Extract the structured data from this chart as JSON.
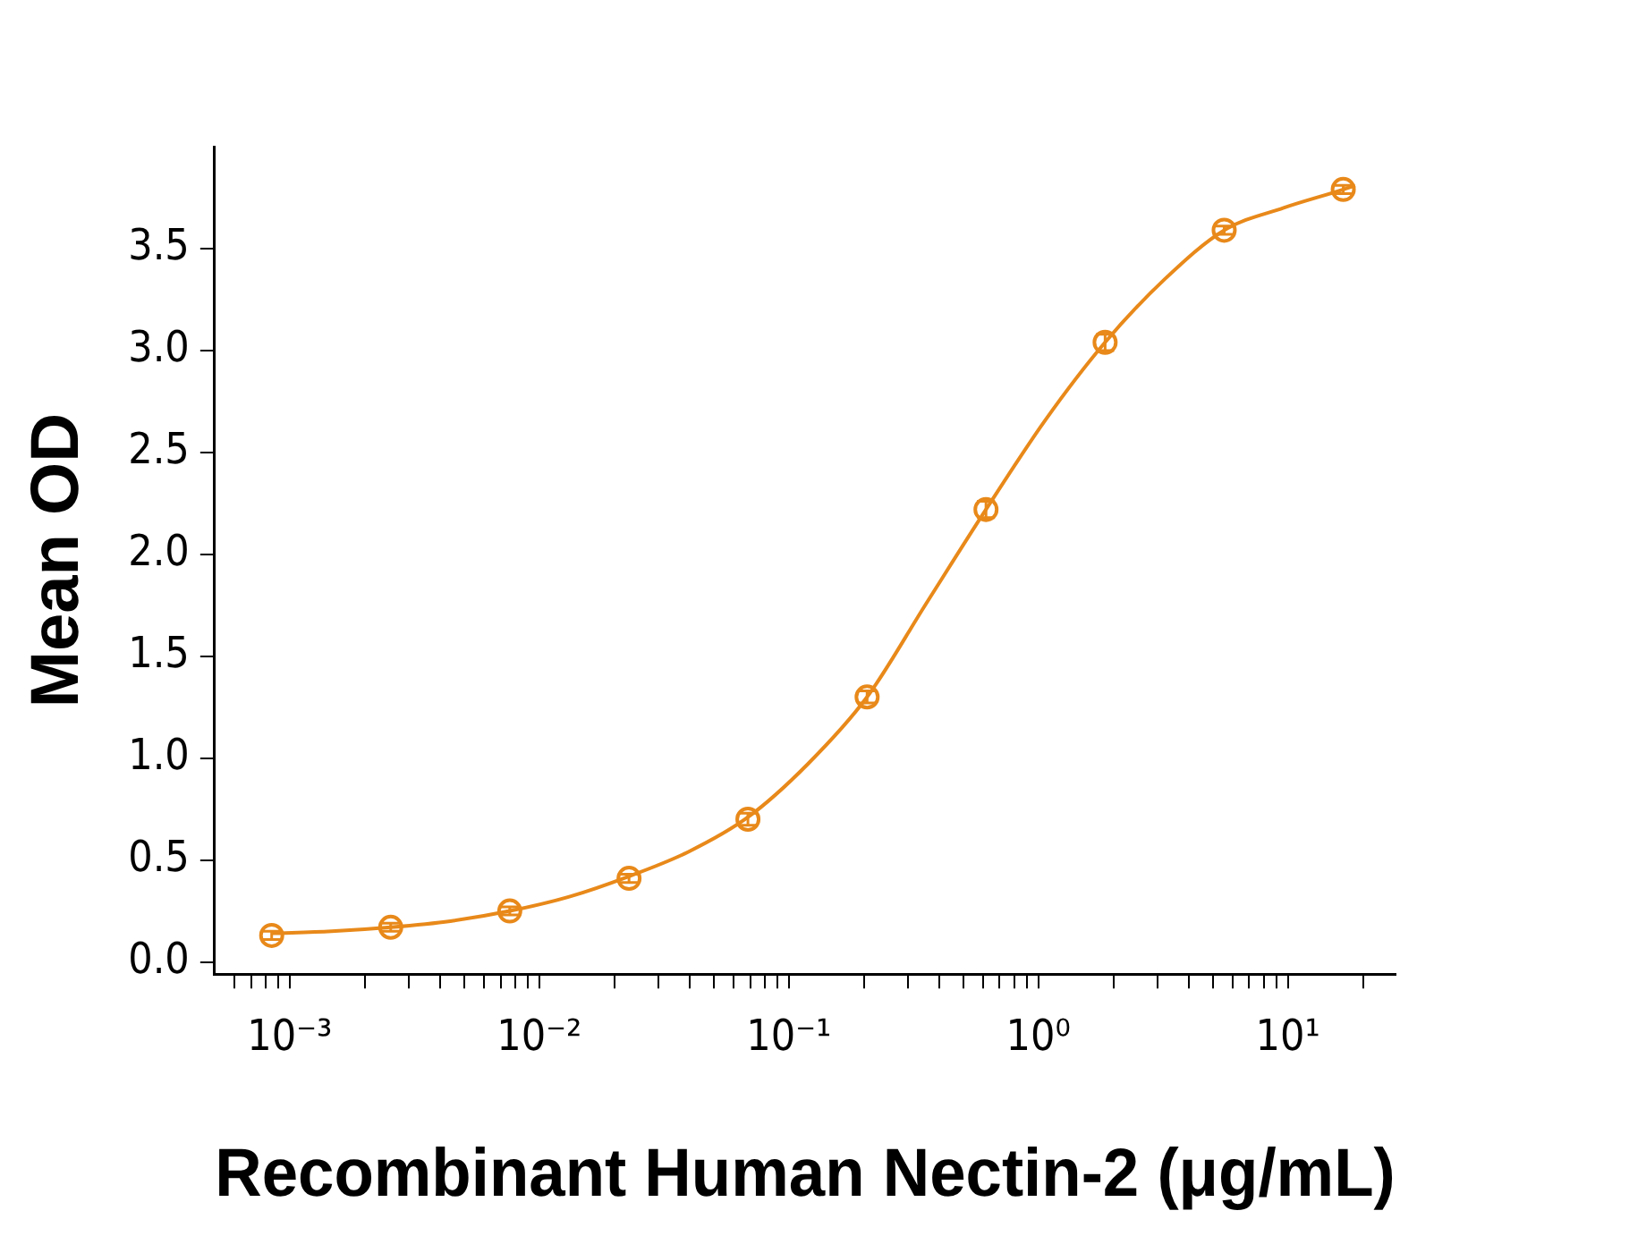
{
  "chart_data": {
    "type": "scatter",
    "xlabel": "Recombinant Human Nectin-2 (μg/mL)",
    "ylabel": "Mean OD",
    "log": "x",
    "grid": false,
    "legend": false,
    "marker": "circle",
    "xlim": [
      0.0005,
      27
    ],
    "ylim": [
      -0.06,
      4.0
    ],
    "xticks": [
      {
        "value": 0.0006,
        "label": null
      },
      {
        "value": 0.0007,
        "label": null
      },
      {
        "value": 0.0008,
        "label": null
      },
      {
        "value": 0.0009,
        "label": null
      },
      {
        "value": 0.001,
        "label": "10⁻³"
      },
      {
        "value": 0.002,
        "label": null
      },
      {
        "value": 0.003,
        "label": null
      },
      {
        "value": 0.004,
        "label": null
      },
      {
        "value": 0.005,
        "label": null
      },
      {
        "value": 0.006,
        "label": null
      },
      {
        "value": 0.007,
        "label": null
      },
      {
        "value": 0.008,
        "label": null
      },
      {
        "value": 0.009,
        "label": null
      },
      {
        "value": 0.01,
        "label": "10⁻²"
      },
      {
        "value": 0.02,
        "label": null
      },
      {
        "value": 0.03,
        "label": null
      },
      {
        "value": 0.04,
        "label": null
      },
      {
        "value": 0.05,
        "label": null
      },
      {
        "value": 0.06,
        "label": null
      },
      {
        "value": 0.07,
        "label": null
      },
      {
        "value": 0.08,
        "label": null
      },
      {
        "value": 0.09,
        "label": null
      },
      {
        "value": 0.1,
        "label": "10⁻¹"
      },
      {
        "value": 0.2,
        "label": null
      },
      {
        "value": 0.3,
        "label": null
      },
      {
        "value": 0.4,
        "label": null
      },
      {
        "value": 0.5,
        "label": null
      },
      {
        "value": 0.6,
        "label": null
      },
      {
        "value": 0.7,
        "label": null
      },
      {
        "value": 0.8,
        "label": null
      },
      {
        "value": 0.9,
        "label": null
      },
      {
        "value": 1,
        "label": "10⁰"
      },
      {
        "value": 2,
        "label": null
      },
      {
        "value": 3,
        "label": null
      },
      {
        "value": 4,
        "label": null
      },
      {
        "value": 5,
        "label": null
      },
      {
        "value": 6,
        "label": null
      },
      {
        "value": 7,
        "label": null
      },
      {
        "value": 8,
        "label": null
      },
      {
        "value": 9,
        "label": null
      },
      {
        "value": 10,
        "label": "10¹"
      },
      {
        "value": 20,
        "label": null
      }
    ],
    "yticks": [
      {
        "value": 0,
        "label": "0.0"
      },
      0.5,
      {
        "value": 1,
        "label": "1.0"
      },
      1.5,
      {
        "value": 2,
        "label": "2.0"
      },
      2.5,
      {
        "value": 3,
        "label": "3.0"
      },
      3.5
    ],
    "series": [
      {
        "color": "#e8891a",
        "x": [
          0.000847,
          0.00254,
          0.00762,
          0.0229,
          0.0686,
          0.206,
          0.617,
          1.852,
          5.556,
          16.67
        ],
        "values": [
          0.13,
          0.17,
          0.25,
          0.41,
          0.7,
          1.3,
          2.22,
          3.04,
          3.59,
          3.79
        ],
        "errors": [
          0.02,
          0.02,
          0.02,
          0.02,
          0.03,
          0.03,
          0.04,
          0.04,
          0.02,
          0.02
        ]
      },
      {
        "type": "line",
        "color": "#e8891a",
        "marker": "none",
        "x": [
          0.000847,
          0.00147,
          0.00254,
          0.0044,
          0.00762,
          0.0132,
          0.0229,
          0.0396,
          0.0686,
          0.119,
          0.206,
          0.356,
          0.617,
          1.069,
          1.852,
          3.21,
          5.556,
          9.62,
          16.67,
          18.6
        ],
        "values": [
          0.14,
          0.15,
          0.17,
          0.2,
          0.25,
          0.32,
          0.42,
          0.54,
          0.71,
          0.97,
          1.3,
          1.76,
          2.22,
          2.66,
          3.04,
          3.35,
          3.59,
          3.7,
          3.79,
          3.81
        ]
      }
    ]
  }
}
